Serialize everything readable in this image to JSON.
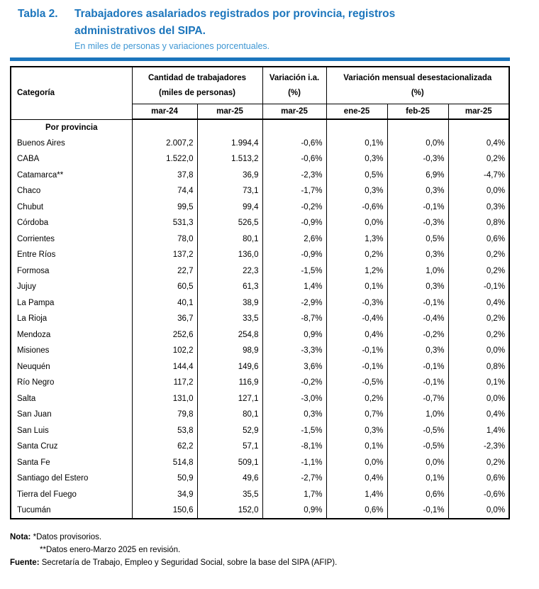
{
  "title": {
    "label": "Tabla 2.",
    "text": "Trabajadores asalariados registrados por provincia, registros administrativos del SIPA.",
    "subtitle": "En miles de personas y variaciones porcentuales."
  },
  "colors": {
    "title_blue": "#1b75bc",
    "subtitle_blue": "#3e96d3",
    "rule_blue": "#1b75bc",
    "border_black": "#000000"
  },
  "table": {
    "col_headers": {
      "category": "Categoría",
      "group1": "Cantidad de trabajadores",
      "group1_sub": "(miles de personas)",
      "group2": "Variación i.a.",
      "group2_sub": "(%)",
      "group3": "Variación mensual desestacionalizada",
      "group3_sub": "(%)",
      "sub": [
        "mar-24",
        "mar-25",
        "mar-25",
        "ene-25",
        "feb-25",
        "mar-25"
      ]
    },
    "section_label": "Por provincia",
    "rows": [
      {
        "name": "Buenos Aires",
        "values": [
          "2.007,2",
          "1.994,4",
          "-0,6%",
          "0,1%",
          "0,0%",
          "0,4%"
        ]
      },
      {
        "name": "CABA",
        "values": [
          "1.522,0",
          "1.513,2",
          "-0,6%",
          "0,3%",
          "-0,3%",
          "0,2%"
        ]
      },
      {
        "name": "Catamarca**",
        "values": [
          "37,8",
          "36,9",
          "-2,3%",
          "0,5%",
          "6,9%",
          "-4,7%"
        ]
      },
      {
        "name": "Chaco",
        "values": [
          "74,4",
          "73,1",
          "-1,7%",
          "0,3%",
          "0,3%",
          "0,0%"
        ]
      },
      {
        "name": "Chubut",
        "values": [
          "99,5",
          "99,4",
          "-0,2%",
          "-0,6%",
          "-0,1%",
          "0,3%"
        ]
      },
      {
        "name": "Córdoba",
        "values": [
          "531,3",
          "526,5",
          "-0,9%",
          "0,0%",
          "-0,3%",
          "0,8%"
        ]
      },
      {
        "name": "Corrientes",
        "values": [
          "78,0",
          "80,1",
          "2,6%",
          "1,3%",
          "0,5%",
          "0,6%"
        ]
      },
      {
        "name": "Entre Ríos",
        "values": [
          "137,2",
          "136,0",
          "-0,9%",
          "0,2%",
          "0,3%",
          "0,2%"
        ]
      },
      {
        "name": "Formosa",
        "values": [
          "22,7",
          "22,3",
          "-1,5%",
          "1,2%",
          "1,0%",
          "0,2%"
        ]
      },
      {
        "name": "Jujuy",
        "values": [
          "60,5",
          "61,3",
          "1,4%",
          "0,1%",
          "0,3%",
          "-0,1%"
        ]
      },
      {
        "name": "La Pampa",
        "values": [
          "40,1",
          "38,9",
          "-2,9%",
          "-0,3%",
          "-0,1%",
          "0,4%"
        ]
      },
      {
        "name": "La Rioja",
        "values": [
          "36,7",
          "33,5",
          "-8,7%",
          "-0,4%",
          "-0,4%",
          "0,2%"
        ]
      },
      {
        "name": "Mendoza",
        "values": [
          "252,6",
          "254,8",
          "0,9%",
          "0,4%",
          "-0,2%",
          "0,2%"
        ]
      },
      {
        "name": "Misiones",
        "values": [
          "102,2",
          "98,9",
          "-3,3%",
          "-0,1%",
          "0,3%",
          "0,0%"
        ]
      },
      {
        "name": "Neuquén",
        "values": [
          "144,4",
          "149,6",
          "3,6%",
          "-0,1%",
          "-0,1%",
          "0,8%"
        ]
      },
      {
        "name": "Río Negro",
        "values": [
          "117,2",
          "116,9",
          "-0,2%",
          "-0,5%",
          "-0,1%",
          "0,1%"
        ]
      },
      {
        "name": "Salta",
        "values": [
          "131,0",
          "127,1",
          "-3,0%",
          "0,2%",
          "-0,7%",
          "0,0%"
        ]
      },
      {
        "name": "San Juan",
        "values": [
          "79,8",
          "80,1",
          "0,3%",
          "0,7%",
          "1,0%",
          "0,4%"
        ]
      },
      {
        "name": "San Luis",
        "values": [
          "53,8",
          "52,9",
          "-1,5%",
          "0,3%",
          "-0,5%",
          "1,4%"
        ]
      },
      {
        "name": "Santa Cruz",
        "values": [
          "62,2",
          "57,1",
          "-8,1%",
          "0,1%",
          "-0,5%",
          "-2,3%"
        ]
      },
      {
        "name": "Santa Fe",
        "values": [
          "514,8",
          "509,1",
          "-1,1%",
          "0,0%",
          "0,0%",
          "0,2%"
        ]
      },
      {
        "name": "Santiago del Estero",
        "values": [
          "50,9",
          "49,6",
          "-2,7%",
          "0,4%",
          "0,1%",
          "0,6%"
        ]
      },
      {
        "name": "Tierra del Fuego",
        "values": [
          "34,9",
          "35,5",
          "1,7%",
          "1,4%",
          "0,6%",
          "-0,6%"
        ]
      },
      {
        "name": "Tucumán",
        "values": [
          "150,6",
          "152,0",
          "0,9%",
          "0,6%",
          "-0,1%",
          "0,0%"
        ]
      }
    ]
  },
  "footer": {
    "nota_label": "Nota:",
    "nota_line1": "*Datos provisorios.",
    "nota_line2": "**Datos enero-Marzo 2025 en revisión.",
    "fuente_label": "Fuente:",
    "fuente_text": "Secretaría de Trabajo, Empleo y Seguridad Social, sobre la base del SIPA (AFIP)."
  }
}
